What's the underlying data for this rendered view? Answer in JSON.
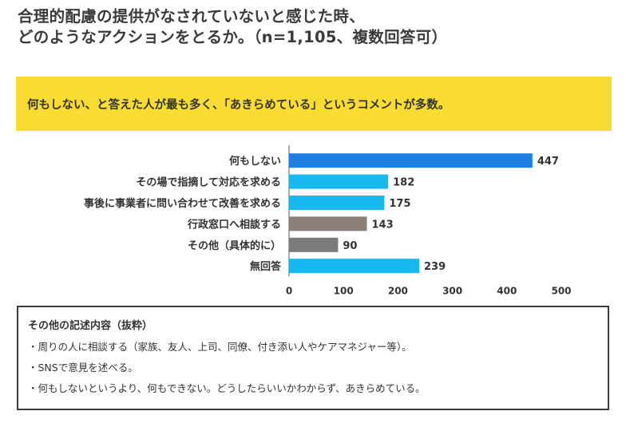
{
  "title": {
    "line1": "合理的配慮の提供がなされていないと感じた時、",
    "line2": "どのようなアクションをとるか。（n=1,105、複数回答可）"
  },
  "highlight": {
    "text": "何もしない、と答えた人が最も多く、「あきらめている」というコメントが多数。"
  },
  "chart_data": {
    "type": "bar",
    "orientation": "horizontal",
    "categories": [
      "何もしない",
      "その場で指摘して対応を求める",
      "事後に事業者に問い合わせて改善を求める",
      "行政窓口へ相談する",
      "その他（具体的に）",
      "無回答"
    ],
    "values": [
      447,
      182,
      175,
      143,
      90,
      239
    ],
    "colors": [
      "#1f7fe0",
      "#16b8ee",
      "#16b8ee",
      "#8c7e78",
      "#7b7b7b",
      "#16b8ee"
    ],
    "xlim": [
      0,
      500
    ],
    "xticks": [
      0,
      100,
      200,
      300,
      400,
      500
    ],
    "grid": false,
    "legend": "none"
  },
  "notes": {
    "title": "その他の記述内容（抜粋）",
    "items": [
      "・周りの人に相談する（家族、友人、上司、同僚、付き添い人やケアマネジャー等）。",
      "・SNSで意見を述べる。",
      "・何もしないというより、何もできない。どうしたらいいかわからず、あきらめている。"
    ]
  }
}
